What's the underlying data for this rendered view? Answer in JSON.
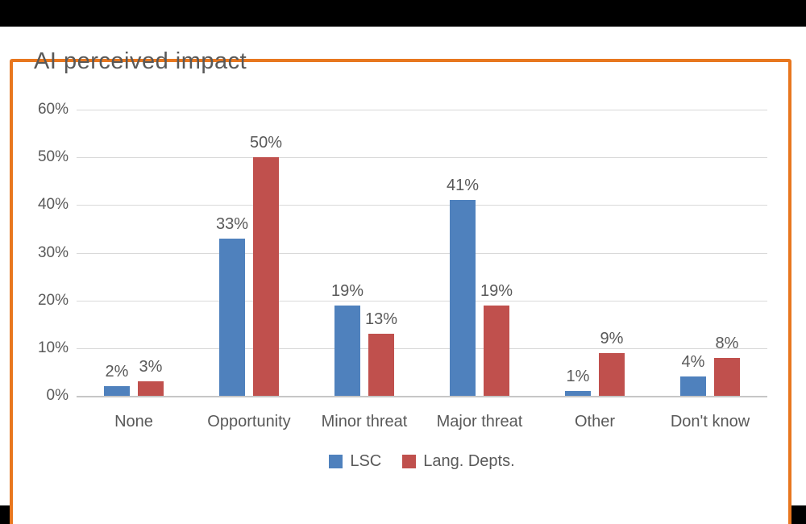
{
  "window": {
    "background": "#000000",
    "frame_border_color": "#E8771F"
  },
  "chart_data": {
    "type": "bar",
    "title": "AI perceived impact",
    "categories": [
      "None",
      "Opportunity",
      "Minor threat",
      "Major threat",
      "Other",
      "Don't know"
    ],
    "series": [
      {
        "name": "LSC",
        "color": "#4F81BD",
        "values": [
          2,
          33,
          19,
          41,
          1,
          4
        ]
      },
      {
        "name": "Lang. Depts.",
        "color": "#C0504D",
        "values": [
          3,
          50,
          13,
          19,
          9,
          8
        ]
      }
    ],
    "data_label_format": "{v}%",
    "y_ticks": [
      "60%",
      "50%",
      "40%",
      "30%",
      "20%",
      "10%",
      "0%"
    ],
    "ylim": [
      0,
      60
    ],
    "grid": true,
    "gridline_color": "#D9D9D9",
    "axis_line_color": "#C6C6C6",
    "text_color": "#595959",
    "legend_position": "bottom"
  }
}
